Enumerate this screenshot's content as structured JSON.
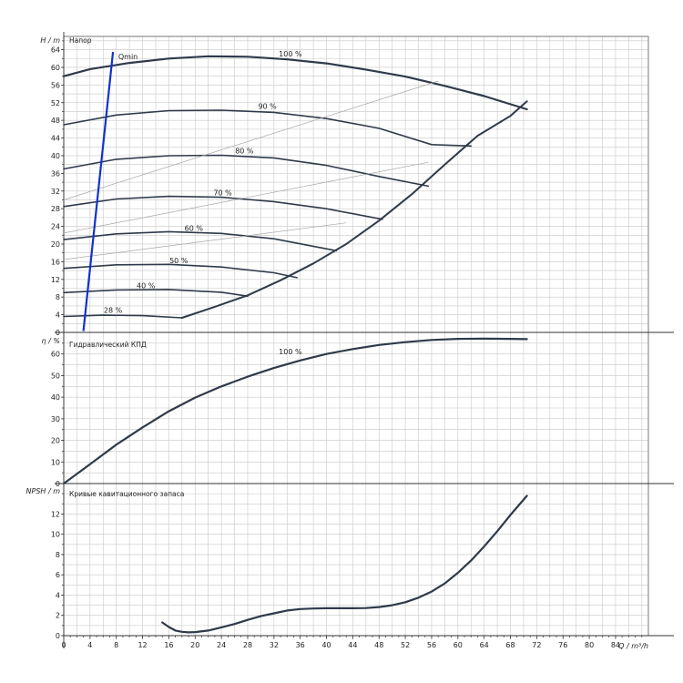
{
  "chart_data": [
    {
      "type": "line",
      "title": "Напор",
      "ylabel": "H / m",
      "xlim": [
        0,
        89
      ],
      "ylim": [
        0,
        67
      ],
      "x_ticks": [
        0,
        4,
        8,
        12,
        16,
        20,
        24,
        28,
        32,
        36,
        40,
        44,
        48,
        52,
        56,
        60,
        64,
        68,
        72,
        76,
        80,
        84
      ],
      "y_ticks": [
        0,
        4,
        8,
        12,
        16,
        20,
        24,
        28,
        32,
        36,
        40,
        44,
        48,
        52,
        56,
        60,
        64
      ],
      "series": [
        {
          "name": "100 %",
          "x": [
            0,
            4,
            10,
            16,
            22,
            28,
            34,
            40,
            46,
            52,
            58,
            64,
            70.5
          ],
          "y": [
            58,
            59.6,
            61,
            62,
            62.5,
            62.4,
            61.8,
            60.9,
            59.5,
            57.9,
            55.8,
            53.5,
            50.5
          ]
        },
        {
          "name": "90 %",
          "x": [
            0,
            8,
            16,
            24,
            32,
            40,
            48,
            56,
            62
          ],
          "y": [
            47,
            49.2,
            50.2,
            50.3,
            49.8,
            48.4,
            46.2,
            42.5,
            42.2
          ]
        },
        {
          "name": "80 %",
          "x": [
            0,
            8,
            16,
            24,
            32,
            40,
            48,
            55.5
          ],
          "y": [
            37,
            39.2,
            40,
            40.1,
            39.5,
            37.8,
            35.3,
            33.1
          ]
        },
        {
          "name": "70 %",
          "x": [
            0,
            8,
            16,
            24,
            32,
            40,
            48.5
          ],
          "y": [
            28.5,
            30.2,
            30.8,
            30.6,
            29.6,
            28,
            25.6
          ]
        },
        {
          "name": "60 %",
          "x": [
            0,
            8,
            16,
            24,
            32,
            41.5
          ],
          "y": [
            21,
            22.3,
            22.8,
            22.4,
            21.2,
            18.5
          ]
        },
        {
          "name": "50 %",
          "x": [
            0,
            8,
            16,
            24,
            32,
            35.5
          ],
          "y": [
            14.5,
            15.3,
            15.4,
            14.8,
            13.5,
            12.4
          ]
        },
        {
          "name": "40 %",
          "x": [
            0,
            8,
            16,
            24,
            28
          ],
          "y": [
            9,
            9.6,
            9.7,
            9.1,
            8.2
          ]
        },
        {
          "name": "28 %",
          "x": [
            0,
            6,
            12,
            18
          ],
          "y": [
            3.6,
            3.9,
            3.8,
            3.3
          ]
        },
        {
          "name": "",
          "x": [
            18,
            23,
            28,
            33,
            38,
            43,
            48,
            53,
            58,
            63,
            68,
            70.5
          ],
          "y": [
            3.3,
            5.8,
            8.4,
            11.8,
            15.6,
            20,
            25.3,
            31.3,
            38,
            44.5,
            49,
            52.3
          ]
        },
        {
          "name": "",
          "x": [
            0,
            57
          ],
          "y": [
            30,
            56.9
          ]
        },
        {
          "name": "",
          "x": [
            0,
            55.5
          ],
          "y": [
            22.5,
            38.5
          ]
        },
        {
          "name": "",
          "x": [
            0,
            43
          ],
          "y": [
            16.5,
            24.8
          ]
        },
        {
          "name": "Qmin",
          "x": [
            3,
            7.5
          ],
          "y": [
            0.3,
            63.5
          ]
        }
      ],
      "annotations": [
        {
          "text": "100 %",
          "x": 34.5,
          "y": 62.3
        },
        {
          "text": "90 %",
          "x": 31,
          "y": 50.4
        },
        {
          "text": "80 %",
          "x": 27.5,
          "y": 40.3
        },
        {
          "text": "70 %",
          "x": 24.2,
          "y": 30.8
        },
        {
          "text": "60 %",
          "x": 19.8,
          "y": 22.8
        },
        {
          "text": "50 %",
          "x": 17.5,
          "y": 15.5
        },
        {
          "text": "40 %",
          "x": 12.5,
          "y": 9.8
        },
        {
          "text": "28 %",
          "x": 7.5,
          "y": 4.2
        },
        {
          "text": "Qmin",
          "x": 8.3,
          "y": 61.6
        }
      ]
    },
    {
      "type": "line",
      "title": "Гидравлический КПД",
      "ylabel": "η / %",
      "xlim": [
        0,
        89
      ],
      "ylim": [
        0,
        70
      ],
      "y_ticks": [
        0,
        10,
        20,
        30,
        40,
        50,
        60
      ],
      "series": [
        {
          "name": "100 %",
          "x": [
            0,
            4,
            8,
            12,
            16,
            20,
            24,
            28,
            32,
            36,
            40,
            44,
            48,
            52,
            56,
            60,
            64,
            68,
            70.5
          ],
          "y": [
            0,
            9,
            18,
            26,
            33.5,
            39.8,
            45,
            49.5,
            53.5,
            57,
            60,
            62.3,
            64.2,
            65.5,
            66.5,
            67,
            67.1,
            67,
            66.9
          ]
        }
      ],
      "annotations": [
        {
          "text": "100 %",
          "x": 34.5,
          "y": 59.5
        }
      ]
    },
    {
      "type": "line",
      "title": "Кривые кавитационного запаса",
      "ylabel": "NPSH / m",
      "xlabel": "Q / m³/h",
      "xlim": [
        0,
        89
      ],
      "ylim": [
        0,
        15
      ],
      "y_ticks": [
        0,
        2,
        4,
        6,
        8,
        10,
        12
      ],
      "series": [
        {
          "name": "",
          "x": [
            15,
            16,
            17,
            18,
            19,
            20,
            22,
            24,
            26,
            28,
            30,
            32,
            34,
            36,
            38,
            40,
            42,
            44,
            46,
            48,
            50,
            52,
            54,
            56,
            58,
            60,
            62,
            64,
            66,
            68,
            70.5
          ],
          "y": [
            1.3,
            0.85,
            0.5,
            0.38,
            0.32,
            0.35,
            0.5,
            0.82,
            1.15,
            1.55,
            1.92,
            2.2,
            2.48,
            2.62,
            2.68,
            2.7,
            2.7,
            2.7,
            2.72,
            2.82,
            3.0,
            3.3,
            3.75,
            4.35,
            5.15,
            6.2,
            7.4,
            8.8,
            10.3,
            11.9,
            13.8
          ]
        }
      ]
    }
  ]
}
